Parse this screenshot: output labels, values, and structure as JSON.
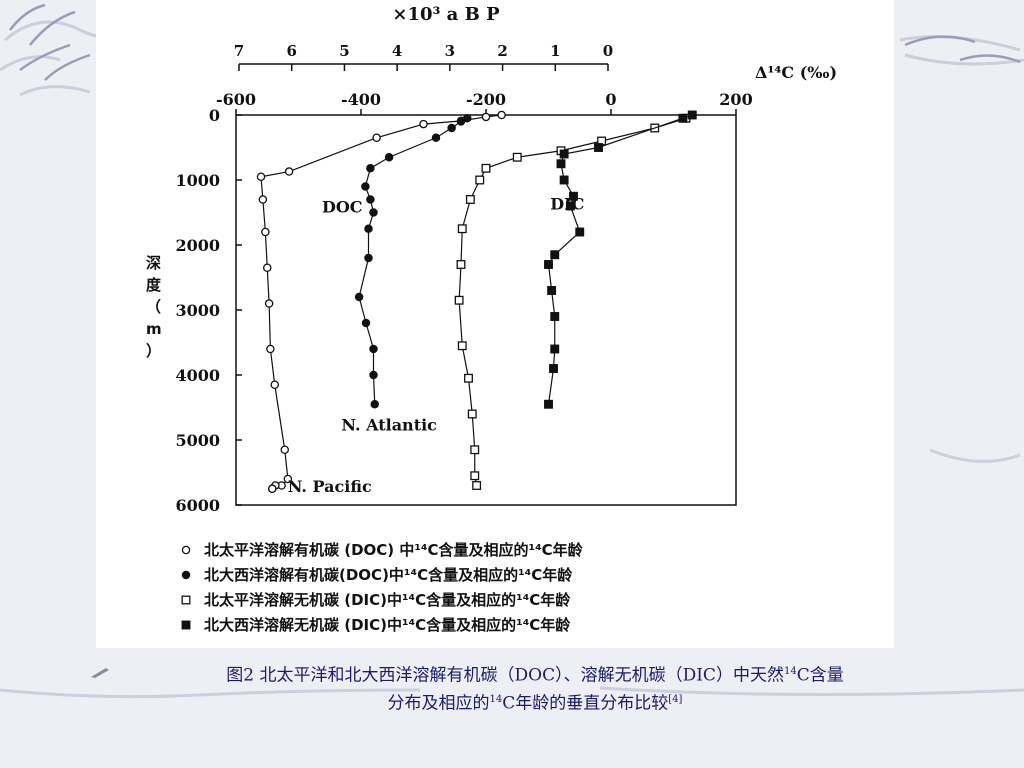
{
  "caption": {
    "line1_pre": "图2 北太平洋和北大西洋溶解有机碳（DOC）、溶解无机碳（DIC）中天然",
    "line1_sup": "14",
    "line1_post": "C含量",
    "line2_pre": "分布及相应的",
    "line2_sup": "14",
    "line2_mid": "C年龄的垂直分布比较",
    "line2_ref": "[4]"
  },
  "colors": {
    "caption": "#1a1a6e",
    "ink": "#111111",
    "background": "#eeeff4"
  },
  "chart_data": {
    "type": "line",
    "x_top_label": "×10³ a B P",
    "x_top_ticks": [
      "7",
      "6",
      "5",
      "4",
      "3",
      "2",
      "1",
      "0"
    ],
    "x_label": "Δ¹⁴C (‰)",
    "x_ticks": [
      "-600",
      "-400",
      "-200",
      "0",
      "200"
    ],
    "xlim": [
      -600,
      200
    ],
    "ylabel": "深度（m）",
    "y_ticks": [
      "0",
      "1000",
      "2000",
      "3000",
      "4000",
      "5000",
      "6000"
    ],
    "ylim": [
      0,
      6000
    ],
    "group_labels": [
      "DOC",
      "DIC",
      "N. Atlantic",
      "N. Pacific"
    ],
    "series": [
      {
        "name": "北太平洋溶解有机碳 (DOC) 中¹⁴C含量及相应的¹⁴C年龄",
        "marker": "open-circle",
        "x": [
          -175,
          -200,
          -240,
          -300,
          -375,
          -515,
          -560,
          -557,
          -553,
          -550,
          -547,
          -545,
          -538,
          -522,
          -517,
          -527,
          -537,
          -542,
          -542
        ],
        "y": [
          0,
          30,
          90,
          140,
          350,
          870,
          950,
          1300,
          1800,
          2350,
          2900,
          3600,
          4150,
          5150,
          5600,
          5700,
          5700,
          5750,
          5750
        ]
      },
      {
        "name": "北大西洋溶解有机碳(DOC)中¹⁴C含量及相应的¹⁴C年龄",
        "marker": "filled-circle",
        "x": [
          -230,
          -240,
          -255,
          -280,
          -355,
          -385,
          -393,
          -385,
          -380,
          -388,
          -388,
          -403,
          -392,
          -380,
          -380,
          -378
        ],
        "y": [
          50,
          100,
          200,
          350,
          650,
          820,
          1100,
          1300,
          1500,
          1750,
          2200,
          2800,
          3200,
          3600,
          4000,
          4450
        ]
      },
      {
        "name": "北太平洋溶解无机碳 (DIC)中¹⁴C含量及相应的¹⁴C年龄",
        "marker": "open-square",
        "x": [
          120,
          70,
          -15,
          -80,
          -150,
          -200,
          -210,
          -225,
          -238,
          -240,
          -243,
          -238,
          -228,
          -222,
          -218,
          -218,
          -215
        ],
        "y": [
          50,
          200,
          400,
          550,
          650,
          820,
          1000,
          1300,
          1750,
          2300,
          2850,
          3550,
          4050,
          4600,
          5150,
          5550,
          5700
        ]
      },
      {
        "name": "北大西洋溶解无机碳 (DIC)中¹⁴C含量及相应的¹⁴C年龄",
        "marker": "filled-square",
        "x": [
          130,
          115,
          -20,
          -75,
          -80,
          -75,
          -60,
          -65,
          -50,
          -90,
          -100,
          -95,
          -90,
          -90,
          -92,
          -100
        ],
        "y": [
          0,
          50,
          500,
          600,
          750,
          1000,
          1250,
          1400,
          1800,
          2150,
          2300,
          2700,
          3100,
          3600,
          3900,
          4450
        ]
      }
    ]
  }
}
